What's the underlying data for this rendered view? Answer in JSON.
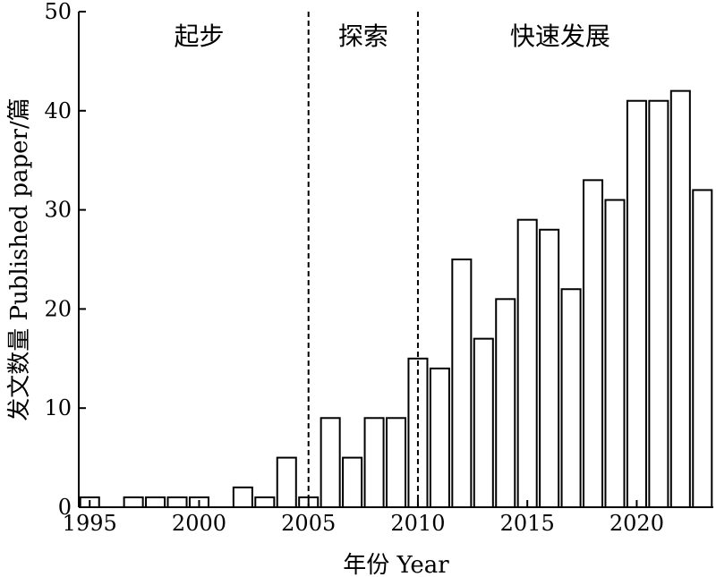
{
  "chart_data": {
    "type": "bar",
    "xlabel": "年份 Year",
    "ylabel": "发文数量 Published paper/篇",
    "ylim": [
      0,
      50
    ],
    "xlim": [
      1994.5,
      2023.5
    ],
    "grid": false,
    "x": [
      1995,
      1996,
      1997,
      1998,
      1999,
      2000,
      2001,
      2002,
      2003,
      2004,
      2005,
      2006,
      2007,
      2008,
      2009,
      2010,
      2011,
      2012,
      2013,
      2014,
      2015,
      2016,
      2017,
      2018,
      2019,
      2020,
      2021,
      2022,
      2023
    ],
    "values": [
      1,
      0,
      1,
      1,
      1,
      1,
      0,
      2,
      1,
      5,
      1,
      9,
      5,
      9,
      9,
      15,
      14,
      25,
      17,
      21,
      29,
      28,
      22,
      33,
      31,
      41,
      41,
      42,
      32
    ],
    "x_ticks": [
      1995,
      2000,
      2005,
      2010,
      2015,
      2020
    ],
    "y_ticks": [
      0,
      10,
      20,
      30,
      40,
      50
    ],
    "dividers": [
      2005,
      2010
    ],
    "phases": [
      {
        "label": "起步",
        "center": 2000
      },
      {
        "label": "探索",
        "center": 2007.5
      },
      {
        "label": "快速发展",
        "center": 2016.5
      }
    ],
    "colors": {
      "bar_fill": "#ffffff",
      "bar_stroke": "#000000",
      "axis": "#000000"
    }
  }
}
